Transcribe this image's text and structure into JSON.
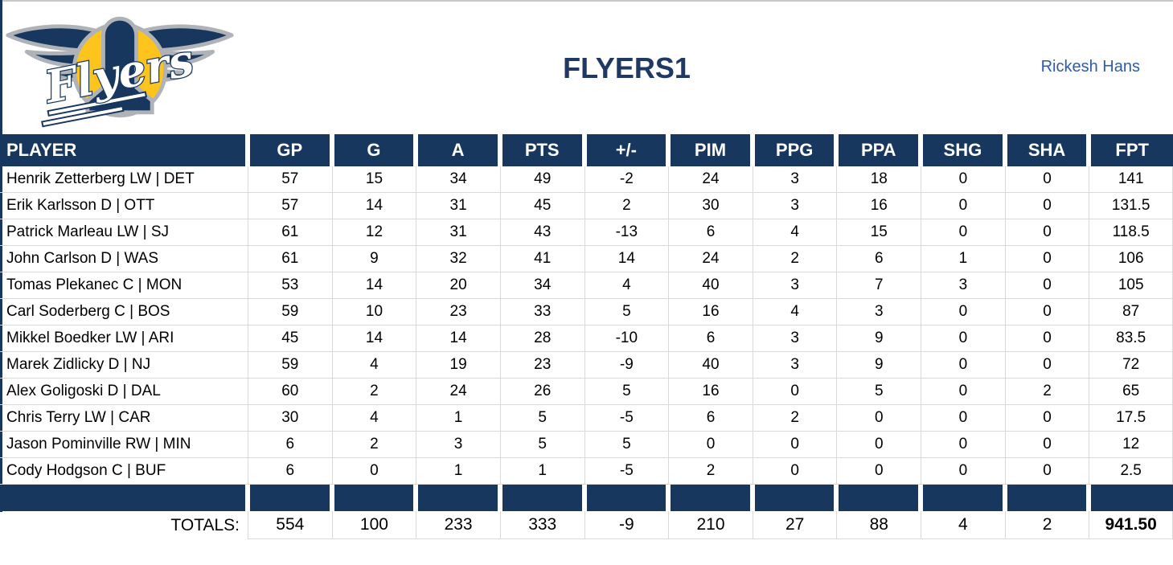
{
  "header": {
    "title": "FLYERS1",
    "owner": "Rickesh Hans",
    "logo_text": "Flyers"
  },
  "colors": {
    "header_navy": "#17375E",
    "title_navy": "#1F3864",
    "owner_blue": "#2E5CA8",
    "gridline": "#D9D9D9",
    "logo_gold": "#FCC41C",
    "logo_silver": "#AFB3B8"
  },
  "table": {
    "columns": [
      "PLAYER",
      "GP",
      "G",
      "A",
      "PTS",
      "+/-",
      "PIM",
      "PPG",
      "PPA",
      "SHG",
      "SHA",
      "FPT"
    ],
    "rows": [
      {
        "player": "Henrik Zetterberg LW | DET",
        "stats": [
          "57",
          "15",
          "34",
          "49",
          "-2",
          "24",
          "3",
          "18",
          "0",
          "0",
          "141"
        ]
      },
      {
        "player": "Erik Karlsson D | OTT",
        "stats": [
          "57",
          "14",
          "31",
          "45",
          "2",
          "30",
          "3",
          "16",
          "0",
          "0",
          "131.5"
        ]
      },
      {
        "player": "Patrick Marleau LW | SJ",
        "stats": [
          "61",
          "12",
          "31",
          "43",
          "-13",
          "6",
          "4",
          "15",
          "0",
          "0",
          "118.5"
        ]
      },
      {
        "player": "John Carlson D | WAS",
        "stats": [
          "61",
          "9",
          "32",
          "41",
          "14",
          "24",
          "2",
          "6",
          "1",
          "0",
          "106"
        ]
      },
      {
        "player": "Tomas Plekanec C | MON",
        "stats": [
          "53",
          "14",
          "20",
          "34",
          "4",
          "40",
          "3",
          "7",
          "3",
          "0",
          "105"
        ]
      },
      {
        "player": "Carl Soderberg C | BOS",
        "stats": [
          "59",
          "10",
          "23",
          "33",
          "5",
          "16",
          "4",
          "3",
          "0",
          "0",
          "87"
        ]
      },
      {
        "player": "Mikkel Boedker LW | ARI",
        "stats": [
          "45",
          "14",
          "14",
          "28",
          "-10",
          "6",
          "3",
          "9",
          "0",
          "0",
          "83.5"
        ]
      },
      {
        "player": "Marek Zidlicky D | NJ",
        "stats": [
          "59",
          "4",
          "19",
          "23",
          "-9",
          "40",
          "3",
          "9",
          "0",
          "0",
          "72"
        ]
      },
      {
        "player": "Alex Goligoski D | DAL",
        "stats": [
          "60",
          "2",
          "24",
          "26",
          "5",
          "16",
          "0",
          "5",
          "0",
          "2",
          "65"
        ]
      },
      {
        "player": "Chris Terry LW | CAR",
        "stats": [
          "30",
          "4",
          "1",
          "5",
          "-5",
          "6",
          "2",
          "0",
          "0",
          "0",
          "17.5"
        ]
      },
      {
        "player": "Jason Pominville RW | MIN",
        "stats": [
          "6",
          "2",
          "3",
          "5",
          "5",
          "0",
          "0",
          "0",
          "0",
          "0",
          "12"
        ]
      },
      {
        "player": "Cody Hodgson C | BUF",
        "stats": [
          "6",
          "0",
          "1",
          "1",
          "-5",
          "2",
          "0",
          "0",
          "0",
          "0",
          "2.5"
        ]
      }
    ],
    "totals_label": "TOTALS:",
    "totals": [
      "554",
      "100",
      "233",
      "333",
      "-9",
      "210",
      "27",
      "88",
      "4",
      "2",
      "941.50"
    ]
  }
}
